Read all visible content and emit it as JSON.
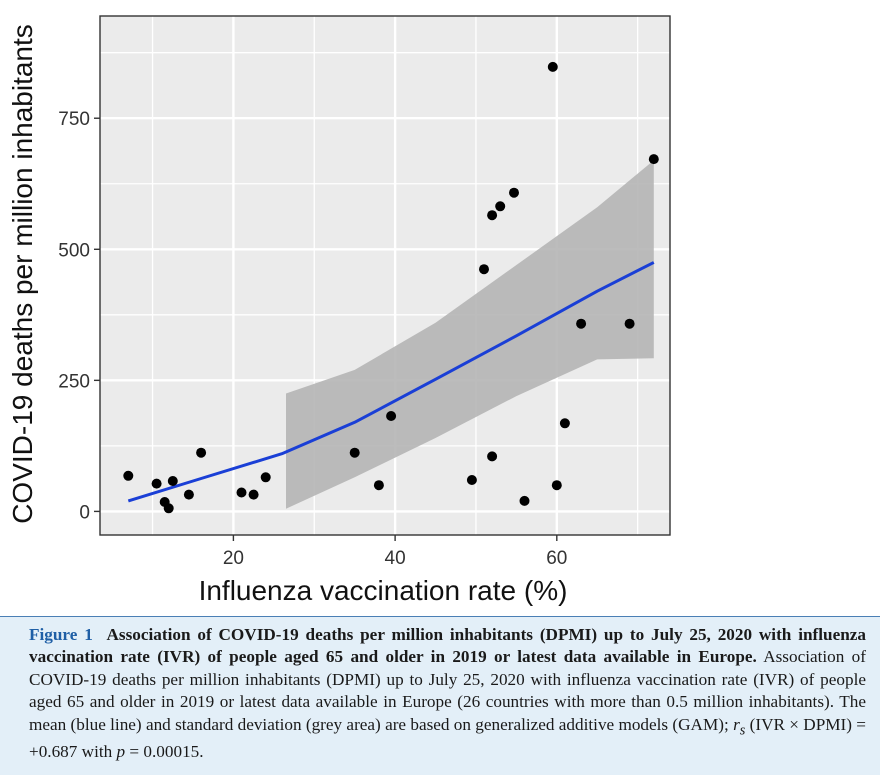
{
  "chart_data": {
    "type": "scatter",
    "xlabel": "Influenza vaccination rate (%)",
    "ylabel": "COVID-19 deaths per million inhabitants",
    "xlim": [
      3.5,
      74
    ],
    "ylim": [
      -45,
      945
    ],
    "x_ticks": [
      20,
      40,
      60
    ],
    "y_ticks": [
      0,
      250,
      500,
      750
    ],
    "grid": true,
    "legend": "none",
    "points": [
      {
        "x": 7,
        "y": 68
      },
      {
        "x": 10.5,
        "y": 53
      },
      {
        "x": 11.5,
        "y": 18
      },
      {
        "x": 12,
        "y": 6
      },
      {
        "x": 12.5,
        "y": 58
      },
      {
        "x": 14.5,
        "y": 32
      },
      {
        "x": 16,
        "y": 112
      },
      {
        "x": 21,
        "y": 36
      },
      {
        "x": 22.5,
        "y": 32
      },
      {
        "x": 24,
        "y": 65
      },
      {
        "x": 35,
        "y": 112
      },
      {
        "x": 38,
        "y": 50
      },
      {
        "x": 39.5,
        "y": 182
      },
      {
        "x": 49.5,
        "y": 60
      },
      {
        "x": 51,
        "y": 462
      },
      {
        "x": 52,
        "y": 105
      },
      {
        "x": 52,
        "y": 565
      },
      {
        "x": 53,
        "y": 582
      },
      {
        "x": 54.7,
        "y": 608
      },
      {
        "x": 56,
        "y": 20
      },
      {
        "x": 59.5,
        "y": 848
      },
      {
        "x": 60,
        "y": 50
      },
      {
        "x": 61,
        "y": 168
      },
      {
        "x": 63,
        "y": 358
      },
      {
        "x": 69,
        "y": 358
      },
      {
        "x": 72,
        "y": 672
      }
    ],
    "fit_line": {
      "name": "mean",
      "color": "#1a3fd6",
      "x": [
        7,
        15,
        26,
        35,
        45,
        55,
        65,
        72
      ],
      "y": [
        20,
        58,
        110,
        170,
        252,
        335,
        420,
        475
      ]
    },
    "confidence_band": {
      "name": "standard deviation",
      "color": "#b5b5b5",
      "x": [
        26.5,
        35,
        45,
        55,
        65,
        72
      ],
      "lower": [
        5,
        65,
        140,
        220,
        290,
        292
      ],
      "upper": [
        225,
        270,
        360,
        470,
        580,
        670
      ]
    },
    "colors": {
      "panel_background": "#ebebeb",
      "grid": "#ffffff",
      "points": "#000000"
    }
  },
  "caption": {
    "figure_number": "Figure 1",
    "bold_title": "Association of COVID-19 deaths per million inhabitants (DPMI) up to July 25, 2020 with influenza vaccination rate (IVR) of people aged 65 and older in 2019 or latest data available in Europe.",
    "body": "Association of COVID-19 deaths per million inhabitants (DPMI) up to July 25, 2020 with influenza vaccination rate (IVR) of people aged 65 and older in 2019 or latest data available in Europe (26 countries with more than 0.5 million inhabitants). The mean (blue line) and standard deviation (grey area) are based on generalized additive models (GAM);",
    "stat_symbol": "r",
    "stat_subscript": "s",
    "stat_expression": "(IVR × DPMI) = +0.687 with",
    "p_symbol": "p",
    "p_value": "= 0.00015."
  }
}
